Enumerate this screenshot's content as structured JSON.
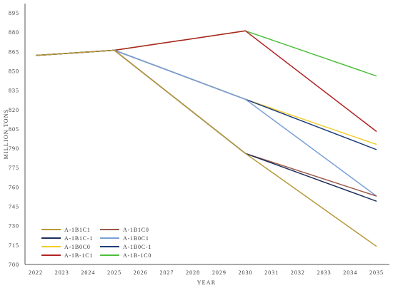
{
  "chart_data": {
    "type": "line",
    "title": "",
    "xlabel": "YEAR",
    "ylabel": "MILLION TONS",
    "x": [
      2022,
      2023,
      2024,
      2025,
      2026,
      2027,
      2028,
      2029,
      2030,
      2031,
      2032,
      2033,
      2034,
      2035
    ],
    "xlim": [
      2022,
      2035
    ],
    "ylim": [
      700,
      895
    ],
    "yticks": [
      700,
      715,
      730,
      745,
      760,
      775,
      790,
      805,
      820,
      835,
      850,
      865,
      880,
      895
    ],
    "grid": false,
    "legend_position": "bottom-left",
    "series": [
      {
        "name": "A-1B1C1",
        "color": "#b89a3a",
        "points": [
          [
            2022,
            862
          ],
          [
            2025,
            866
          ],
          [
            2030,
            786
          ],
          [
            2035,
            714
          ]
        ]
      },
      {
        "name": "A-1B1C0",
        "color": "#9a5a4a",
        "points": [
          [
            2022,
            862
          ],
          [
            2025,
            866
          ],
          [
            2030,
            786
          ],
          [
            2035,
            753
          ]
        ]
      },
      {
        "name": "A-1B1C-1",
        "color": "#1c2d5a",
        "points": [
          [
            2022,
            862
          ],
          [
            2025,
            866
          ],
          [
            2030,
            786
          ],
          [
            2035,
            749
          ]
        ]
      },
      {
        "name": "A-1B0C1",
        "color": "#7a9fd6",
        "points": [
          [
            2022,
            862
          ],
          [
            2025,
            866
          ],
          [
            2030,
            828
          ],
          [
            2035,
            753
          ]
        ]
      },
      {
        "name": "A-1B0C0",
        "color": "#f2cc2a",
        "points": [
          [
            2022,
            862
          ],
          [
            2025,
            866
          ],
          [
            2030,
            828
          ],
          [
            2035,
            793
          ]
        ]
      },
      {
        "name": "A-1B0C-1",
        "color": "#1e3f7a",
        "points": [
          [
            2022,
            862
          ],
          [
            2025,
            866
          ],
          [
            2030,
            828
          ],
          [
            2035,
            789
          ]
        ]
      },
      {
        "name": "A-1B-1C1",
        "color": "#b22222",
        "points": [
          [
            2022,
            862
          ],
          [
            2025,
            866
          ],
          [
            2030,
            881
          ],
          [
            2035,
            803
          ]
        ]
      },
      {
        "name": "A-1B-1C0",
        "color": "#4cbf3a",
        "points": [
          [
            2022,
            862
          ],
          [
            2025,
            866
          ],
          [
            2030,
            881
          ],
          [
            2035,
            846
          ]
        ]
      }
    ]
  }
}
